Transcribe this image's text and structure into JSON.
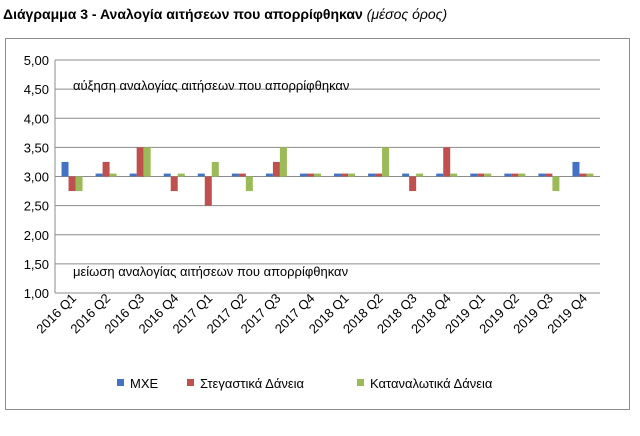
{
  "header": {
    "title": "Διάγραμμα 3 - Αναλογία αιτήσεων που απορρίφθηκαν",
    "subtitle": "(μέσος όρος)"
  },
  "chart_data": {
    "type": "bar",
    "categories": [
      "2016 Q1",
      "2016 Q2",
      "2016 Q3",
      "2016 Q4",
      "2017 Q1",
      "2017 Q2",
      "2017 Q3",
      "2017 Q4",
      "2018 Q1",
      "2018 Q2",
      "2018 Q3",
      "2018 Q4",
      "2019 Q1",
      "2019 Q2",
      "2019 Q3",
      "2019 Q4"
    ],
    "series": [
      {
        "name": "ΜΧΕ",
        "color": "#4472C4",
        "values": [
          3.25,
          3.05,
          3.05,
          3.05,
          3.05,
          3.05,
          3.05,
          3.05,
          3.05,
          3.05,
          3.05,
          3.05,
          3.05,
          3.05,
          3.05,
          3.25
        ]
      },
      {
        "name": "Στεγαστικά Δάνεια",
        "color": "#C0504D",
        "values": [
          2.75,
          3.25,
          3.5,
          2.75,
          2.5,
          3.05,
          3.25,
          3.05,
          3.05,
          3.05,
          2.75,
          3.5,
          3.05,
          3.05,
          3.05,
          3.05
        ]
      },
      {
        "name": "Καταναλωτικά Δάνεια",
        "color": "#9BBB59",
        "values": [
          2.75,
          3.05,
          3.5,
          3.05,
          3.25,
          2.75,
          3.5,
          3.05,
          3.05,
          3.5,
          3.05,
          3.05,
          3.05,
          3.05,
          2.75,
          3.05
        ]
      }
    ],
    "baseline": 3.0,
    "ylim": [
      1.0,
      5.0
    ],
    "yticks": [
      "1,00",
      "1,50",
      "2,00",
      "2,50",
      "3,00",
      "3,50",
      "4,00",
      "4,50",
      "5,00"
    ],
    "ytick_values": [
      1.0,
      1.5,
      2.0,
      2.5,
      3.0,
      3.5,
      4.0,
      4.5,
      5.0
    ],
    "grid": true,
    "legend_position": "bottom",
    "annotations": {
      "top": "αύξηση αναλογίας αιτήσεων που απορρίφθηκαν",
      "bottom": "μείωση αναλογίας αιτήσεων που απορρίφθηκαν"
    }
  }
}
